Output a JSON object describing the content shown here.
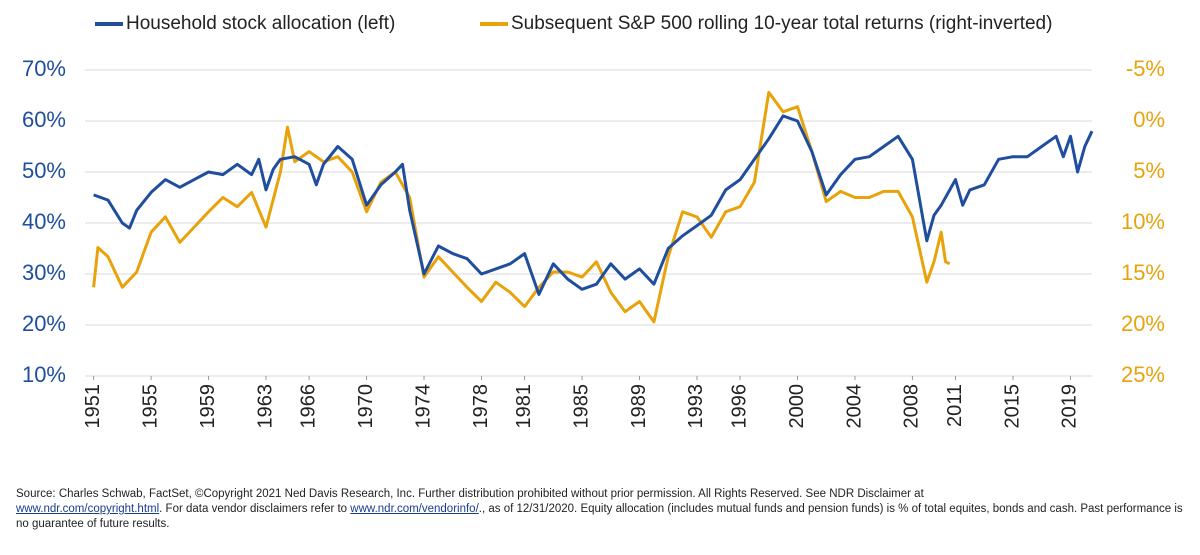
{
  "chart_data": {
    "type": "line",
    "legend": [
      "Household stock allocation (left)",
      "Subsequent S&P 500 rolling 10-year total returns (right-inverted)"
    ],
    "xlim": [
      1950.4,
      2020.5
    ],
    "xticks": [
      1951,
      1955,
      1959,
      1963,
      1966,
      1970,
      1974,
      1978,
      1981,
      1985,
      1989,
      1993,
      1996,
      2000,
      2004,
      2008,
      2011,
      2015,
      2019
    ],
    "ylim": [
      10,
      70
    ],
    "yticks": [
      {
        "value": 10,
        "label": "10%"
      },
      {
        "value": 20,
        "label": "20%"
      },
      {
        "value": 30,
        "label": "30%"
      },
      {
        "value": 40,
        "label": "40%"
      },
      {
        "value": 50,
        "label": "50%"
      },
      {
        "value": 60,
        "label": "60%"
      },
      {
        "value": 70,
        "label": "70%"
      }
    ],
    "y2lim": [
      25,
      -5
    ],
    "y2ticks": [
      {
        "value": -5,
        "label": "-5%"
      },
      {
        "value": 0,
        "label": "0%"
      },
      {
        "value": 5,
        "label": "5%"
      },
      {
        "value": 10,
        "label": "10%"
      },
      {
        "value": 15,
        "label": "15%"
      },
      {
        "value": 20,
        "label": "20%"
      },
      {
        "value": 25,
        "label": "25%"
      }
    ],
    "grid": true,
    "series": [
      {
        "name": "Household stock allocation (left)",
        "color": "#1f4e9e",
        "axis": "y",
        "x": [
          1951,
          1952,
          1953,
          1953.5,
          1954,
          1955,
          1956,
          1957,
          1958,
          1959,
          1960,
          1961,
          1962,
          1962.5,
          1963,
          1963.5,
          1964,
          1965,
          1966,
          1966.5,
          1967,
          1968,
          1969,
          1970,
          1971,
          1972,
          1972.5,
          1973,
          1974,
          1975,
          1976,
          1977,
          1978,
          1979,
          1980,
          1981,
          1982,
          1983,
          1984,
          1985,
          1986,
          1987,
          1988,
          1989,
          1990,
          1991,
          1992,
          1993,
          1994,
          1995,
          1996,
          1997,
          1998,
          1999,
          2000,
          2001,
          2002,
          2003,
          2004,
          2005,
          2006,
          2007,
          2008,
          2009,
          2009.5,
          2010,
          2011,
          2011.5,
          2012,
          2013,
          2014,
          2015,
          2016,
          2017,
          2018,
          2018.5,
          2019,
          2019.5,
          2020,
          2020.5
        ],
        "values": [
          45.5,
          44.5,
          40,
          39,
          42.5,
          46,
          48.5,
          47,
          48.5,
          50,
          49.5,
          51.5,
          49.5,
          52.5,
          46.5,
          50.5,
          52.5,
          53,
          51.5,
          47.5,
          51.5,
          55,
          52.5,
          43.5,
          47.5,
          50,
          51.5,
          42.5,
          30,
          35.5,
          34,
          33,
          30,
          31,
          32,
          34,
          26,
          32,
          29,
          27,
          28,
          32,
          29,
          31,
          28,
          35,
          37.5,
          39.5,
          41.5,
          46.5,
          48.5,
          52.5,
          56.5,
          61,
          60,
          54,
          45.5,
          49.5,
          52.5,
          53,
          55,
          57,
          52.5,
          36.5,
          41.5,
          43.5,
          48.5,
          43.5,
          46.5,
          47.5,
          52.5,
          53,
          53,
          55,
          57,
          53,
          57,
          50,
          55,
          58
        ]
      },
      {
        "name": "Subsequent S&P 500 rolling 10-year total returns (right-inverted)",
        "color": "#e8a30c",
        "axis": "y2",
        "x": [
          1951,
          1951.3,
          1952,
          1953,
          1954,
          1955,
          1956,
          1957,
          1958,
          1959,
          1960,
          1961,
          1962,
          1963,
          1964,
          1964.5,
          1965,
          1966,
          1967,
          1968,
          1969,
          1970,
          1971,
          1972,
          1973,
          1974,
          1975,
          1976,
          1977,
          1978,
          1979,
          1980,
          1981,
          1982,
          1983,
          1984,
          1985,
          1986,
          1987,
          1988,
          1989,
          1990,
          1991,
          1992,
          1993,
          1994,
          1995,
          1996,
          1997,
          1998,
          1999,
          2000,
          2001,
          2002,
          2003,
          2004,
          2005,
          2006,
          2007,
          2008,
          2009,
          2009.5,
          2010,
          2010.3,
          2010.6
        ],
        "values": [
          16.3,
          12.4,
          13.3,
          16.3,
          14.8,
          10.9,
          9.4,
          11.9,
          10.4,
          8.9,
          7.5,
          8.4,
          7,
          10.4,
          5,
          0.6,
          4,
          3,
          4,
          3.5,
          5,
          8.9,
          6,
          5,
          7.5,
          15.3,
          13.3,
          14.8,
          16.3,
          17.7,
          15.8,
          16.8,
          18.2,
          16.3,
          14.8,
          14.8,
          15.3,
          13.8,
          16.8,
          18.7,
          17.7,
          19.7,
          13.3,
          8.9,
          9.4,
          11.4,
          8.9,
          8.4,
          6,
          -2.8,
          -0.9,
          -1.4,
          3,
          7.9,
          6.9,
          7.5,
          7.5,
          6.9,
          6.9,
          9.4,
          15.8,
          13.8,
          10.9,
          13.8,
          14
        ]
      }
    ]
  },
  "source": [
    "Source: Charles Schwab, FactSet, ©Copyright 2021 Ned Davis Research, Inc. Further distribution prohibited without prior permission. All Rights Reserved. See NDR Disclaimer at",
    "www.ndr.com/copyright.html",
    ". For data vendor disclaimers refer to",
    "www.ndr.com/vendorinfo/",
    "., as of 12/31/2020. Equity allocation (includes mutual funds and pension funds) is % of total equites, bonds and cash. Past performance is no guarantee of future results."
  ]
}
